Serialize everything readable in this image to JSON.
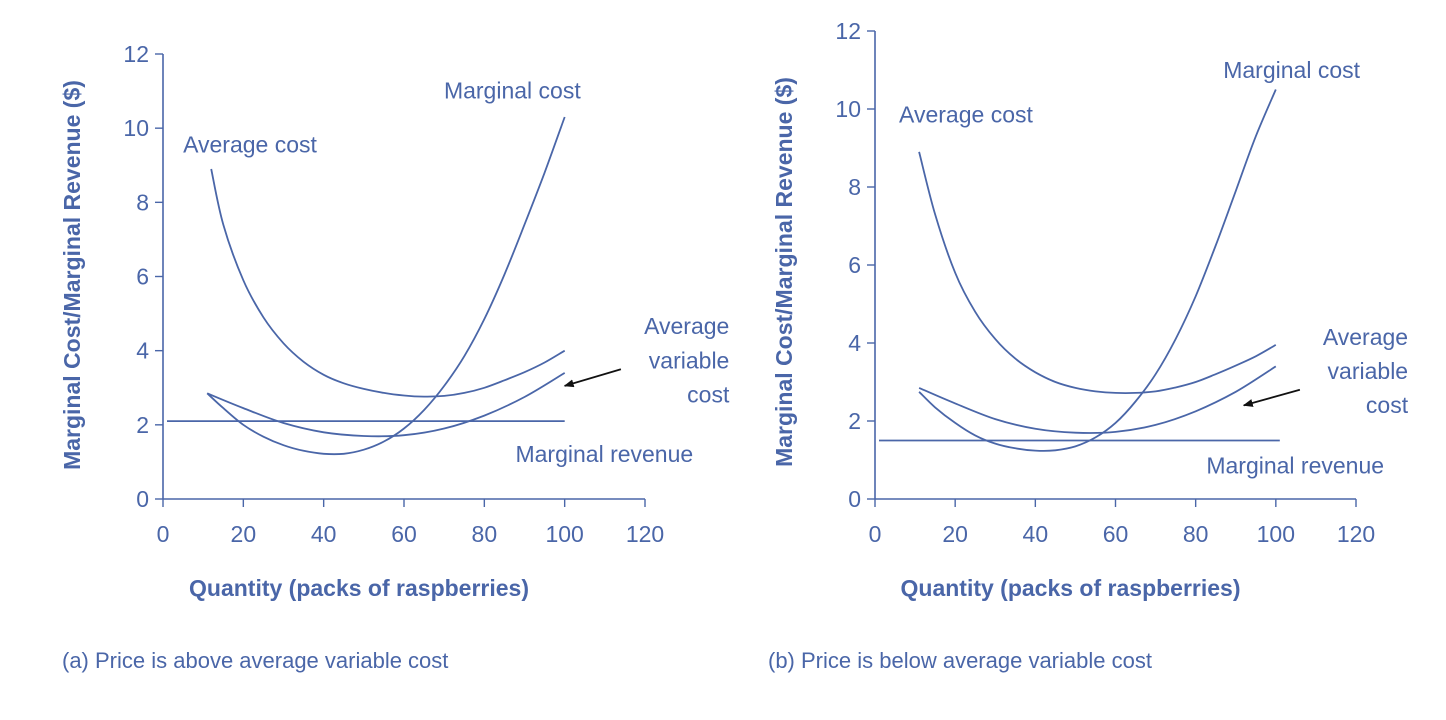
{
  "colors": {
    "ink": "#4a66a8",
    "curve": "#4a66a8",
    "arrow": "#111111"
  },
  "chart_data": [
    {
      "type": "line",
      "title": "",
      "caption": "(a) Price is above average variable cost",
      "xlabel": "Quantity (packs of raspberries)",
      "ylabel": "Marginal Cost/Marginal Revenue ($)",
      "xlim": [
        0,
        120
      ],
      "ylim": [
        0,
        12
      ],
      "xticks": [
        0,
        20,
        40,
        60,
        80,
        100,
        120
      ],
      "yticks": [
        0,
        2,
        4,
        6,
        8,
        10,
        12
      ],
      "grid": false,
      "series": [
        {
          "name": "Average cost",
          "x": [
            12,
            15,
            20,
            25,
            30,
            35,
            40,
            45,
            50,
            55,
            60,
            65,
            70,
            75,
            80,
            85,
            90,
            95,
            100
          ],
          "y": [
            8.9,
            7.4,
            5.9,
            4.9,
            4.2,
            3.7,
            3.35,
            3.12,
            2.97,
            2.86,
            2.79,
            2.76,
            2.78,
            2.86,
            3.0,
            3.2,
            3.42,
            3.68,
            4.0
          ]
        },
        {
          "name": "Marginal cost",
          "x": [
            11,
            15,
            20,
            25,
            30,
            35,
            40,
            45,
            50,
            55,
            60,
            65,
            70,
            75,
            80,
            85,
            90,
            95,
            100
          ],
          "y": [
            2.85,
            2.45,
            2.0,
            1.68,
            1.45,
            1.3,
            1.22,
            1.22,
            1.33,
            1.55,
            1.9,
            2.4,
            3.05,
            3.85,
            4.85,
            6.05,
            7.4,
            8.8,
            10.3
          ]
        },
        {
          "name": "Average variable cost",
          "x": [
            11,
            20,
            30,
            40,
            50,
            60,
            70,
            80,
            90,
            100
          ],
          "y": [
            2.85,
            2.45,
            2.05,
            1.8,
            1.7,
            1.72,
            1.9,
            2.25,
            2.75,
            3.4
          ]
        },
        {
          "name": "Marginal revenue",
          "x": [
            1,
            100
          ],
          "y": [
            2.1,
            2.1
          ]
        }
      ],
      "annotations": [
        {
          "text": "Marginal cost",
          "label_x": 104,
          "label_y": 10.8,
          "anchor": "end"
        },
        {
          "text": "Average cost",
          "label_x": 5,
          "label_y": 9.35,
          "anchor": "start"
        },
        {
          "text": "Average",
          "label_x": 141,
          "label_y": 4.45,
          "anchor": "end"
        },
        {
          "text": "variable",
          "label_x": 141,
          "label_y": 3.52,
          "anchor": "end"
        },
        {
          "text": "cost",
          "label_x": 141,
          "label_y": 2.6,
          "anchor": "end"
        },
        {
          "text": "Marginal revenue",
          "label_x": 132,
          "label_y": 1.0,
          "anchor": "end"
        }
      ],
      "arrow": {
        "from": [
          114,
          3.5
        ],
        "to": [
          100,
          3.05
        ]
      }
    },
    {
      "type": "line",
      "title": "",
      "caption": "(b) Price is below average variable cost",
      "xlabel": "Quantity (packs of raspberries)",
      "ylabel": "Marginal Cost/Marginal Revenue ($)",
      "xlim": [
        0,
        120
      ],
      "ylim": [
        0,
        12
      ],
      "xticks": [
        0,
        20,
        40,
        60,
        80,
        100,
        120
      ],
      "yticks": [
        0,
        2,
        4,
        6,
        8,
        10,
        12
      ],
      "grid": false,
      "series": [
        {
          "name": "Average cost",
          "x": [
            11,
            15,
            20,
            25,
            30,
            35,
            40,
            45,
            50,
            55,
            60,
            65,
            70,
            75,
            80,
            85,
            90,
            95,
            100
          ],
          "y": [
            8.9,
            7.3,
            5.8,
            4.8,
            4.1,
            3.6,
            3.25,
            3.0,
            2.85,
            2.76,
            2.72,
            2.72,
            2.76,
            2.86,
            3.0,
            3.2,
            3.42,
            3.66,
            3.95
          ]
        },
        {
          "name": "Marginal cost",
          "x": [
            11,
            15,
            20,
            25,
            30,
            35,
            40,
            45,
            50,
            55,
            60,
            65,
            70,
            75,
            80,
            85,
            90,
            95,
            100
          ],
          "y": [
            2.75,
            2.35,
            1.95,
            1.63,
            1.42,
            1.3,
            1.24,
            1.25,
            1.35,
            1.58,
            1.95,
            2.5,
            3.2,
            4.1,
            5.2,
            6.5,
            7.9,
            9.3,
            10.5
          ]
        },
        {
          "name": "Average variable cost",
          "x": [
            11,
            20,
            30,
            40,
            50,
            60,
            70,
            80,
            90,
            100
          ],
          "y": [
            2.85,
            2.45,
            2.05,
            1.8,
            1.7,
            1.72,
            1.9,
            2.25,
            2.75,
            3.4
          ]
        },
        {
          "name": "Marginal revenue",
          "x": [
            1,
            101
          ],
          "y": [
            1.5,
            1.5
          ]
        }
      ],
      "annotations": [
        {
          "text": "Marginal cost",
          "label_x": 121,
          "label_y": 10.8,
          "anchor": "end"
        },
        {
          "text": "Average cost",
          "label_x": 6,
          "label_y": 9.65,
          "anchor": "start"
        },
        {
          "text": "Average",
          "label_x": 133,
          "label_y": 3.95,
          "anchor": "end"
        },
        {
          "text": "variable",
          "label_x": 133,
          "label_y": 3.08,
          "anchor": "end"
        },
        {
          "text": "cost",
          "label_x": 133,
          "label_y": 2.2,
          "anchor": "end"
        },
        {
          "text": "Marginal revenue",
          "label_x": 127,
          "label_y": 0.65,
          "anchor": "end"
        }
      ],
      "arrow": {
        "from": [
          106,
          2.8
        ],
        "to": [
          92,
          2.4
        ]
      }
    }
  ]
}
